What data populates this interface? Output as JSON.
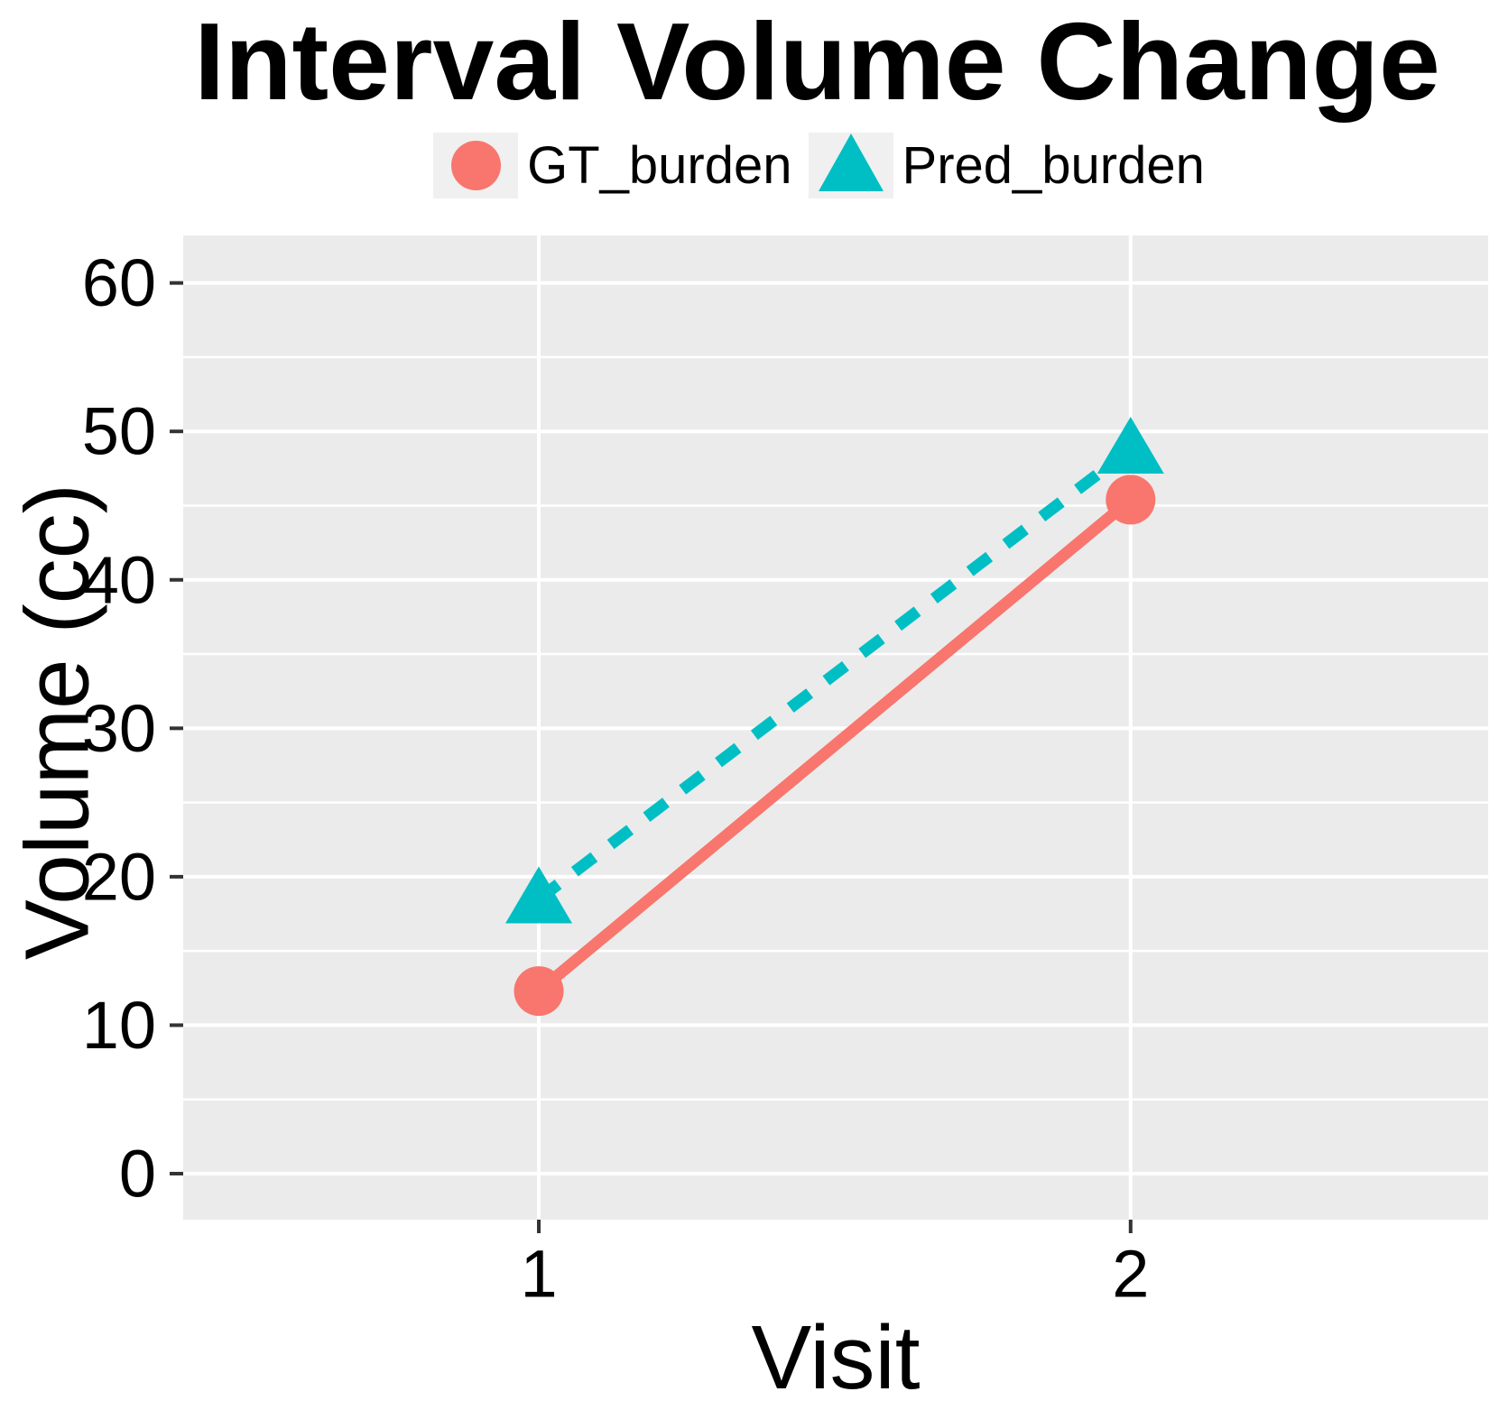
{
  "chart_data": {
    "type": "line",
    "title": "Interval Volume Change",
    "xlabel": "Visit",
    "ylabel": "Volume (cc)",
    "x_categories": [
      "1",
      "2"
    ],
    "series": [
      {
        "name": "GT_burden",
        "values": [
          12.3,
          45.4
        ],
        "color": "#F8766D",
        "marker": "circle",
        "line_style": "solid"
      },
      {
        "name": "Pred_burden",
        "values": [
          18.5,
          48.8
        ],
        "color": "#00BFC4",
        "marker": "triangle-up",
        "line_style": "dashed"
      }
    ],
    "ylim": [
      -3.1,
      63.2
    ],
    "yticks": [
      0,
      10,
      20,
      30,
      40,
      50,
      60
    ],
    "y_minor_ticks": [
      5,
      15,
      25,
      35,
      45,
      55
    ],
    "grid": true,
    "legend_position": "top",
    "panel_background": "#EBEBEB",
    "grid_color": "#FFFFFF",
    "legend_key_background": "#F0F0F0",
    "tick_color": "#333333",
    "text_color": "#000000"
  }
}
